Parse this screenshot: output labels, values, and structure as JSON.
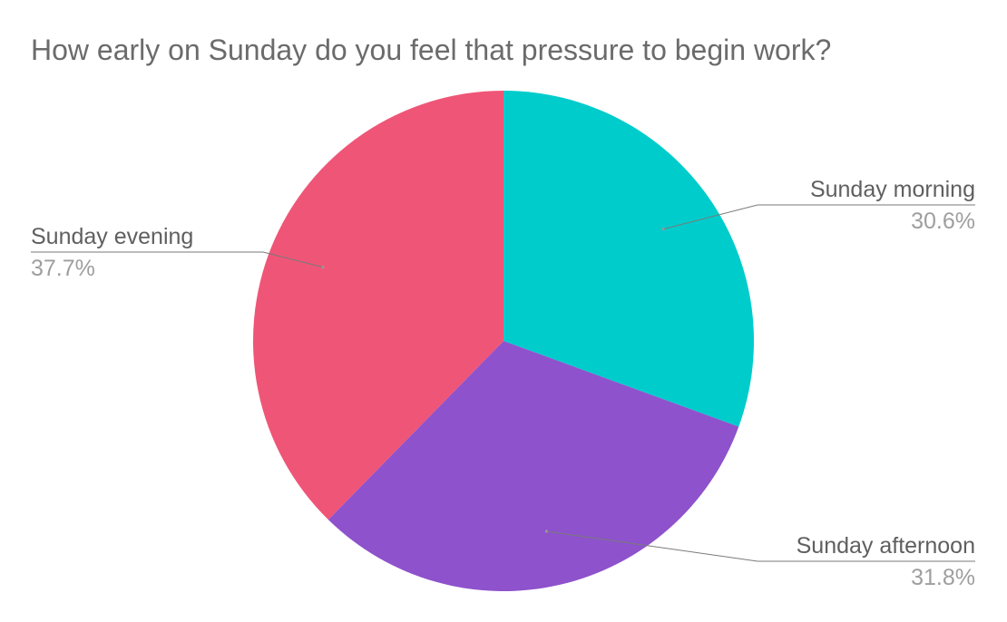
{
  "chart_data": {
    "type": "pie",
    "title": "How early on Sunday do you feel that pressure to begin work?",
    "slices": [
      {
        "label": "Sunday morning",
        "value": 30.6,
        "display": "30.6%",
        "color": "#00cccc"
      },
      {
        "label": "Sunday afternoon",
        "value": 31.8,
        "display": "31.8%",
        "color": "#8e52cc"
      },
      {
        "label": "Sunday evening",
        "value": 37.7,
        "display": "37.7%",
        "color": "#ef5577"
      }
    ],
    "start_angle_deg": 0,
    "direction": "clockwise",
    "legend": "labels"
  }
}
